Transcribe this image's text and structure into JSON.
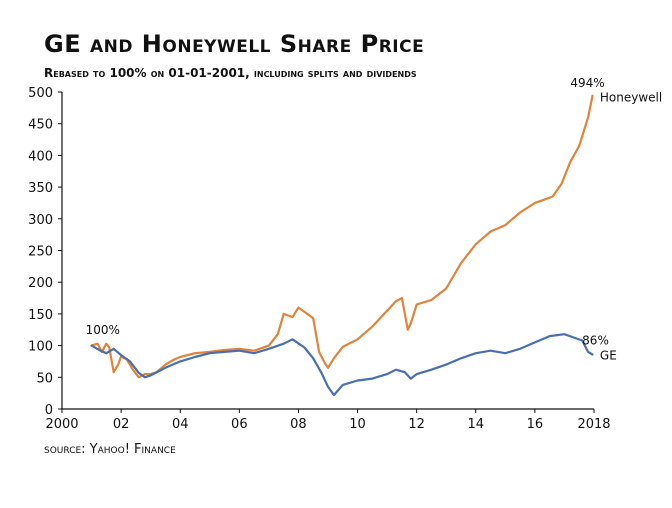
{
  "title": "GE and Honeywell Share Price",
  "subtitle": "Rebased to 100% on 01-01-2001, including splits and dividends",
  "source": "source: Yahoo! Finance",
  "chart_data": {
    "type": "line",
    "ylim": [
      0,
      500
    ],
    "xlim": [
      2000,
      2018
    ],
    "y_ticks": [
      0,
      50,
      100,
      150,
      200,
      250,
      300,
      350,
      400,
      450,
      500
    ],
    "x_ticks": [
      2000,
      2002,
      2004,
      2006,
      2008,
      2010,
      2012,
      2014,
      2016,
      2018
    ],
    "x_tick_labels": [
      "2000",
      "02",
      "04",
      "06",
      "08",
      "10",
      "12",
      "14",
      "16",
      "2018"
    ],
    "grid": false,
    "colors": {
      "honeywell": "#e0833b",
      "ge": "#4a6fb0"
    },
    "series": [
      {
        "name": "Honeywell",
        "end_label": "494%",
        "x": [
          2001.0,
          2001.2,
          2001.35,
          2001.5,
          2001.6,
          2001.75,
          2001.9,
          2002.0,
          2002.2,
          2002.4,
          2002.6,
          2002.8,
          2003.0,
          2003.2,
          2003.5,
          2003.8,
          2004.0,
          2004.5,
          2005.0,
          2005.5,
          2006.0,
          2006.5,
          2007.0,
          2007.3,
          2007.5,
          2007.8,
          2008.0,
          2008.3,
          2008.5,
          2008.7,
          2008.9,
          2009.0,
          2009.2,
          2009.5,
          2010.0,
          2010.5,
          2011.0,
          2011.3,
          2011.5,
          2011.7,
          2011.8,
          2012.0,
          2012.5,
          2013.0,
          2013.5,
          2014.0,
          2014.5,
          2015.0,
          2015.5,
          2016.0,
          2016.3,
          2016.6,
          2016.9,
          2017.2,
          2017.5,
          2017.8,
          2017.95
        ],
        "y": [
          100,
          103,
          90,
          103,
          97,
          58,
          70,
          83,
          78,
          62,
          50,
          55,
          55,
          58,
          70,
          78,
          82,
          88,
          90,
          93,
          95,
          92,
          100,
          118,
          150,
          145,
          160,
          150,
          143,
          90,
          72,
          65,
          80,
          98,
          110,
          130,
          155,
          170,
          175,
          125,
          135,
          165,
          172,
          190,
          230,
          260,
          280,
          290,
          310,
          325,
          330,
          335,
          355,
          390,
          415,
          460,
          494
        ]
      },
      {
        "name": "GE",
        "end_label": "86%",
        "x": [
          2001.0,
          2001.3,
          2001.5,
          2001.75,
          2002.0,
          2002.3,
          2002.6,
          2002.8,
          2003.0,
          2003.5,
          2004.0,
          2004.5,
          2005.0,
          2005.5,
          2006.0,
          2006.5,
          2007.0,
          2007.5,
          2007.8,
          2008.2,
          2008.5,
          2008.8,
          2009.0,
          2009.2,
          2009.5,
          2010.0,
          2010.5,
          2011.0,
          2011.3,
          2011.6,
          2011.8,
          2012.0,
          2012.5,
          2013.0,
          2013.5,
          2014.0,
          2014.5,
          2015.0,
          2015.5,
          2016.0,
          2016.5,
          2017.0,
          2017.3,
          2017.6,
          2017.8,
          2017.95
        ],
        "y": [
          100,
          92,
          88,
          95,
          85,
          75,
          57,
          50,
          53,
          65,
          75,
          82,
          88,
          90,
          92,
          88,
          95,
          103,
          110,
          97,
          80,
          55,
          35,
          22,
          38,
          45,
          48,
          55,
          62,
          58,
          48,
          55,
          62,
          70,
          80,
          88,
          92,
          88,
          95,
          105,
          115,
          118,
          113,
          108,
          90,
          86
        ]
      }
    ],
    "annotations": [
      {
        "text": "100%",
        "x": 2000.8,
        "y": 118
      },
      {
        "text": "494%",
        "x": 2017.2,
        "y": 508
      },
      {
        "text": "Honeywell",
        "x": 2018.2,
        "y": 485
      },
      {
        "text": "86%",
        "x": 2017.6,
        "y": 102
      },
      {
        "text": "GE",
        "x": 2018.2,
        "y": 78
      }
    ]
  }
}
